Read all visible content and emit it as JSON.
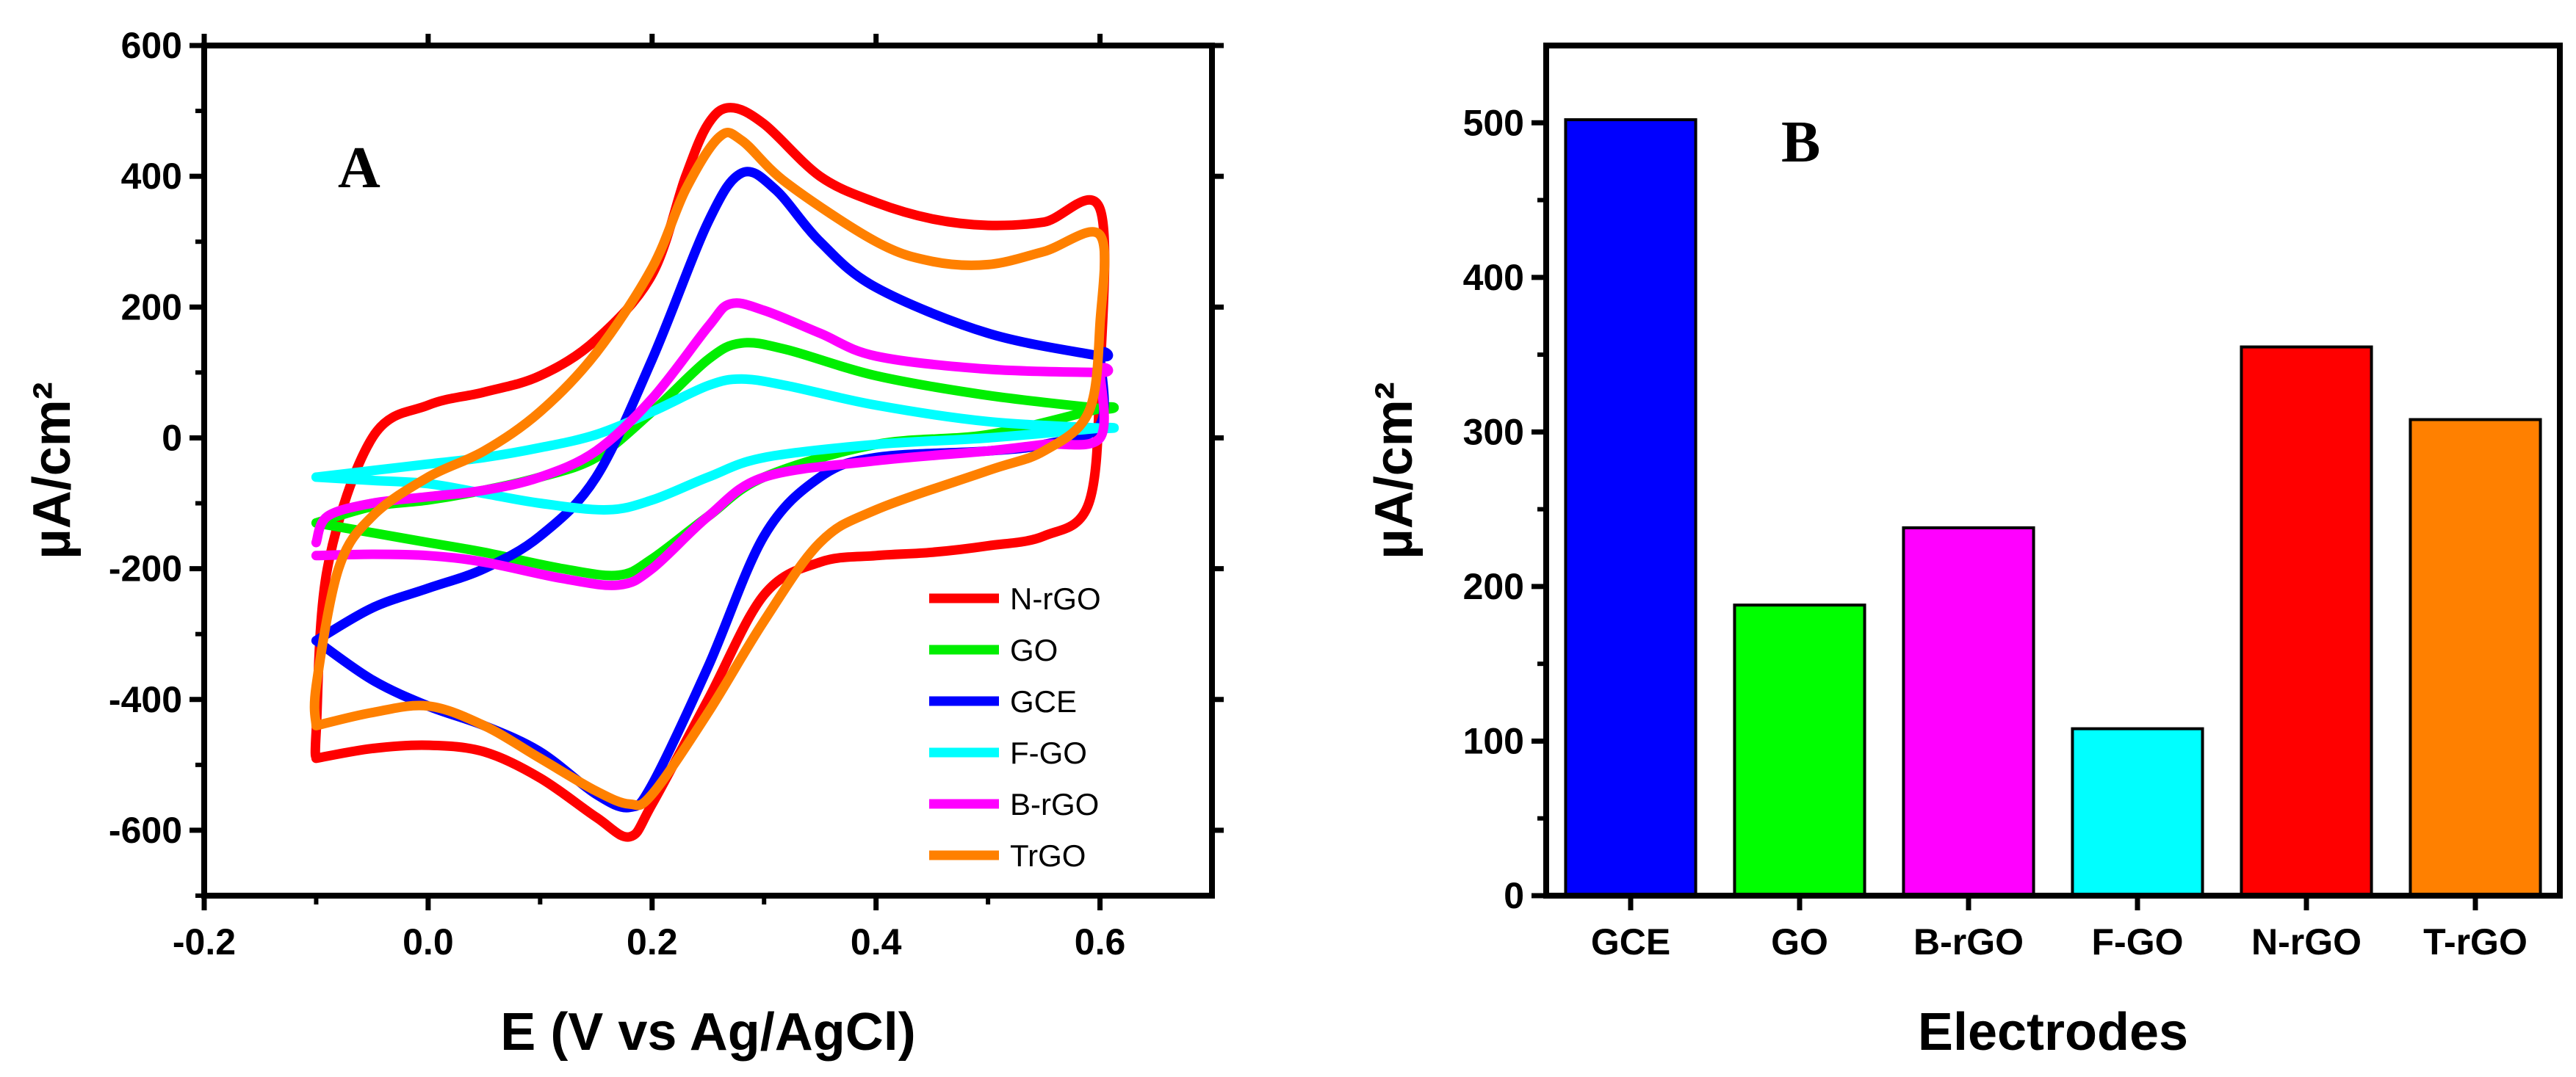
{
  "chart_data": [
    {
      "type": "line",
      "panel_label": "A",
      "xlabel": "E (V vs Ag/AgCl)",
      "ylabel": "µA/cm²",
      "xlim": [
        -0.2,
        0.7
      ],
      "ylim": [
        -700,
        600
      ],
      "xticks": [
        "-0.2",
        "0.0",
        "0.2",
        "0.4",
        "0.6"
      ],
      "yticks": [
        "600",
        "400",
        "200",
        "0",
        "-200",
        "-400",
        "-600"
      ],
      "legend_position": "bottom-right",
      "series": [
        {
          "name": "N-rGO",
          "color": "#ff0000",
          "forward": [
            [
              -0.1,
              -490
            ],
            [
              -0.1,
              -450
            ],
            [
              -0.09,
              -200
            ],
            [
              -0.05,
              0
            ],
            [
              0.0,
              50
            ],
            [
              0.05,
              70
            ],
            [
              0.1,
              95
            ],
            [
              0.15,
              150
            ],
            [
              0.2,
              250
            ],
            [
              0.23,
              400
            ],
            [
              0.25,
              480
            ],
            [
              0.27,
              505
            ],
            [
              0.3,
              480
            ],
            [
              0.35,
              400
            ],
            [
              0.4,
              360
            ],
            [
              0.45,
              335
            ],
            [
              0.5,
              325
            ],
            [
              0.55,
              330
            ],
            [
              0.6,
              350
            ]
          ],
          "reverse": [
            [
              0.6,
              95
            ],
            [
              0.59,
              -100
            ],
            [
              0.55,
              -150
            ],
            [
              0.5,
              -165
            ],
            [
              0.45,
              -175
            ],
            [
              0.4,
              -180
            ],
            [
              0.35,
              -190
            ],
            [
              0.3,
              -240
            ],
            [
              0.25,
              -400
            ],
            [
              0.2,
              -560
            ],
            [
              0.18,
              -610
            ],
            [
              0.15,
              -580
            ],
            [
              0.1,
              -520
            ],
            [
              0.05,
              -480
            ],
            [
              0.0,
              -470
            ],
            [
              -0.05,
              -475
            ],
            [
              -0.1,
              -490
            ]
          ]
        },
        {
          "name": "GO",
          "color": "#00ee00",
          "forward": [
            [
              -0.1,
              -130
            ],
            [
              -0.05,
              -105
            ],
            [
              0.0,
              -95
            ],
            [
              0.05,
              -80
            ],
            [
              0.1,
              -60
            ],
            [
              0.15,
              -30
            ],
            [
              0.2,
              40
            ],
            [
              0.25,
              120
            ],
            [
              0.28,
              145
            ],
            [
              0.32,
              135
            ],
            [
              0.4,
              95
            ],
            [
              0.5,
              65
            ],
            [
              0.6,
              45
            ]
          ],
          "reverse": [
            [
              0.6,
              45
            ],
            [
              0.5,
              5
            ],
            [
              0.4,
              -10
            ],
            [
              0.3,
              -60
            ],
            [
              0.25,
              -120
            ],
            [
              0.2,
              -185
            ],
            [
              0.17,
              -210
            ],
            [
              0.12,
              -200
            ],
            [
              0.05,
              -175
            ],
            [
              0.0,
              -160
            ],
            [
              -0.05,
              -145
            ],
            [
              -0.1,
              -130
            ]
          ]
        },
        {
          "name": "GCE",
          "color": "#0000ff",
          "forward": [
            [
              -0.1,
              -310
            ],
            [
              -0.05,
              -260
            ],
            [
              0.0,
              -230
            ],
            [
              0.05,
              -200
            ],
            [
              0.1,
              -150
            ],
            [
              0.15,
              -60
            ],
            [
              0.2,
              120
            ],
            [
              0.25,
              330
            ],
            [
              0.28,
              405
            ],
            [
              0.31,
              380
            ],
            [
              0.35,
              300
            ],
            [
              0.4,
              230
            ],
            [
              0.5,
              160
            ],
            [
              0.6,
              125
            ]
          ],
          "reverse": [
            [
              0.6,
              125
            ],
            [
              0.6,
              20
            ],
            [
              0.55,
              -10
            ],
            [
              0.5,
              -20
            ],
            [
              0.4,
              -30
            ],
            [
              0.35,
              -60
            ],
            [
              0.3,
              -150
            ],
            [
              0.25,
              -350
            ],
            [
              0.2,
              -530
            ],
            [
              0.18,
              -565
            ],
            [
              0.15,
              -545
            ],
            [
              0.1,
              -480
            ],
            [
              0.05,
              -440
            ],
            [
              0.0,
              -410
            ],
            [
              -0.05,
              -370
            ],
            [
              -0.1,
              -310
            ]
          ]
        },
        {
          "name": "F-GO",
          "color": "#00ffff",
          "forward": [
            [
              -0.1,
              -60
            ],
            [
              -0.05,
              -50
            ],
            [
              0.0,
              -40
            ],
            [
              0.05,
              -30
            ],
            [
              0.1,
              -15
            ],
            [
              0.15,
              5
            ],
            [
              0.2,
              40
            ],
            [
              0.25,
              80
            ],
            [
              0.28,
              90
            ],
            [
              0.32,
              80
            ],
            [
              0.4,
              50
            ],
            [
              0.5,
              25
            ],
            [
              0.6,
              15
            ]
          ],
          "reverse": [
            [
              0.6,
              15
            ],
            [
              0.5,
              0
            ],
            [
              0.4,
              -10
            ],
            [
              0.3,
              -30
            ],
            [
              0.25,
              -60
            ],
            [
              0.2,
              -95
            ],
            [
              0.16,
              -110
            ],
            [
              0.1,
              -100
            ],
            [
              0.05,
              -85
            ],
            [
              0.0,
              -70
            ],
            [
              -0.05,
              -65
            ],
            [
              -0.1,
              -60
            ]
          ]
        },
        {
          "name": "B-rGO",
          "color": "#ff00ff",
          "forward": [
            [
              -0.1,
              -160
            ],
            [
              -0.09,
              -120
            ],
            [
              -0.05,
              -100
            ],
            [
              0.0,
              -90
            ],
            [
              0.05,
              -80
            ],
            [
              0.1,
              -60
            ],
            [
              0.15,
              -20
            ],
            [
              0.2,
              60
            ],
            [
              0.25,
              170
            ],
            [
              0.27,
              205
            ],
            [
              0.3,
              195
            ],
            [
              0.35,
              160
            ],
            [
              0.4,
              125
            ],
            [
              0.5,
              105
            ],
            [
              0.6,
              100
            ]
          ],
          "reverse": [
            [
              0.6,
              100
            ],
            [
              0.6,
              0
            ],
            [
              0.55,
              -10
            ],
            [
              0.5,
              -20
            ],
            [
              0.4,
              -35
            ],
            [
              0.3,
              -60
            ],
            [
              0.25,
              -120
            ],
            [
              0.2,
              -200
            ],
            [
              0.17,
              -225
            ],
            [
              0.12,
              -215
            ],
            [
              0.05,
              -190
            ],
            [
              0.0,
              -180
            ],
            [
              -0.05,
              -178
            ],
            [
              -0.1,
              -180
            ]
          ]
        },
        {
          "name": "TrGO",
          "color": "#ff8000",
          "forward": [
            [
              -0.1,
              -440
            ],
            [
              -0.1,
              -380
            ],
            [
              -0.08,
              -200
            ],
            [
              -0.05,
              -120
            ],
            [
              0.0,
              -60
            ],
            [
              0.05,
              -20
            ],
            [
              0.1,
              40
            ],
            [
              0.15,
              130
            ],
            [
              0.2,
              260
            ],
            [
              0.23,
              380
            ],
            [
              0.26,
              460
            ],
            [
              0.28,
              455
            ],
            [
              0.32,
              390
            ],
            [
              0.4,
              300
            ],
            [
              0.45,
              270
            ],
            [
              0.5,
              265
            ],
            [
              0.55,
              285
            ],
            [
              0.6,
              310
            ]
          ],
          "reverse": [
            [
              0.6,
              175
            ],
            [
              0.59,
              40
            ],
            [
              0.55,
              -20
            ],
            [
              0.5,
              -50
            ],
            [
              0.4,
              -110
            ],
            [
              0.35,
              -160
            ],
            [
              0.3,
              -280
            ],
            [
              0.25,
              -420
            ],
            [
              0.2,
              -545
            ],
            [
              0.18,
              -560
            ],
            [
              0.15,
              -540
            ],
            [
              0.1,
              -490
            ],
            [
              0.05,
              -440
            ],
            [
              0.0,
              -410
            ],
            [
              -0.05,
              -420
            ],
            [
              -0.1,
              -440
            ]
          ]
        }
      ]
    },
    {
      "type": "bar",
      "panel_label": "B",
      "xlabel": "Electrodes",
      "ylabel": "µA/cm²",
      "ylim": [
        0,
        550
      ],
      "yticks": [
        "500",
        "400",
        "300",
        "200",
        "100",
        "0"
      ],
      "categories": [
        "GCE",
        "GO",
        "B-rGO",
        "F-GO",
        "N-rGO",
        "T-rGO"
      ],
      "values": [
        502,
        188,
        238,
        108,
        355,
        308
      ],
      "colors": [
        "#0000ff",
        "#00ff00",
        "#ff00ff",
        "#00ffff",
        "#ff0000",
        "#ff8000"
      ]
    }
  ]
}
